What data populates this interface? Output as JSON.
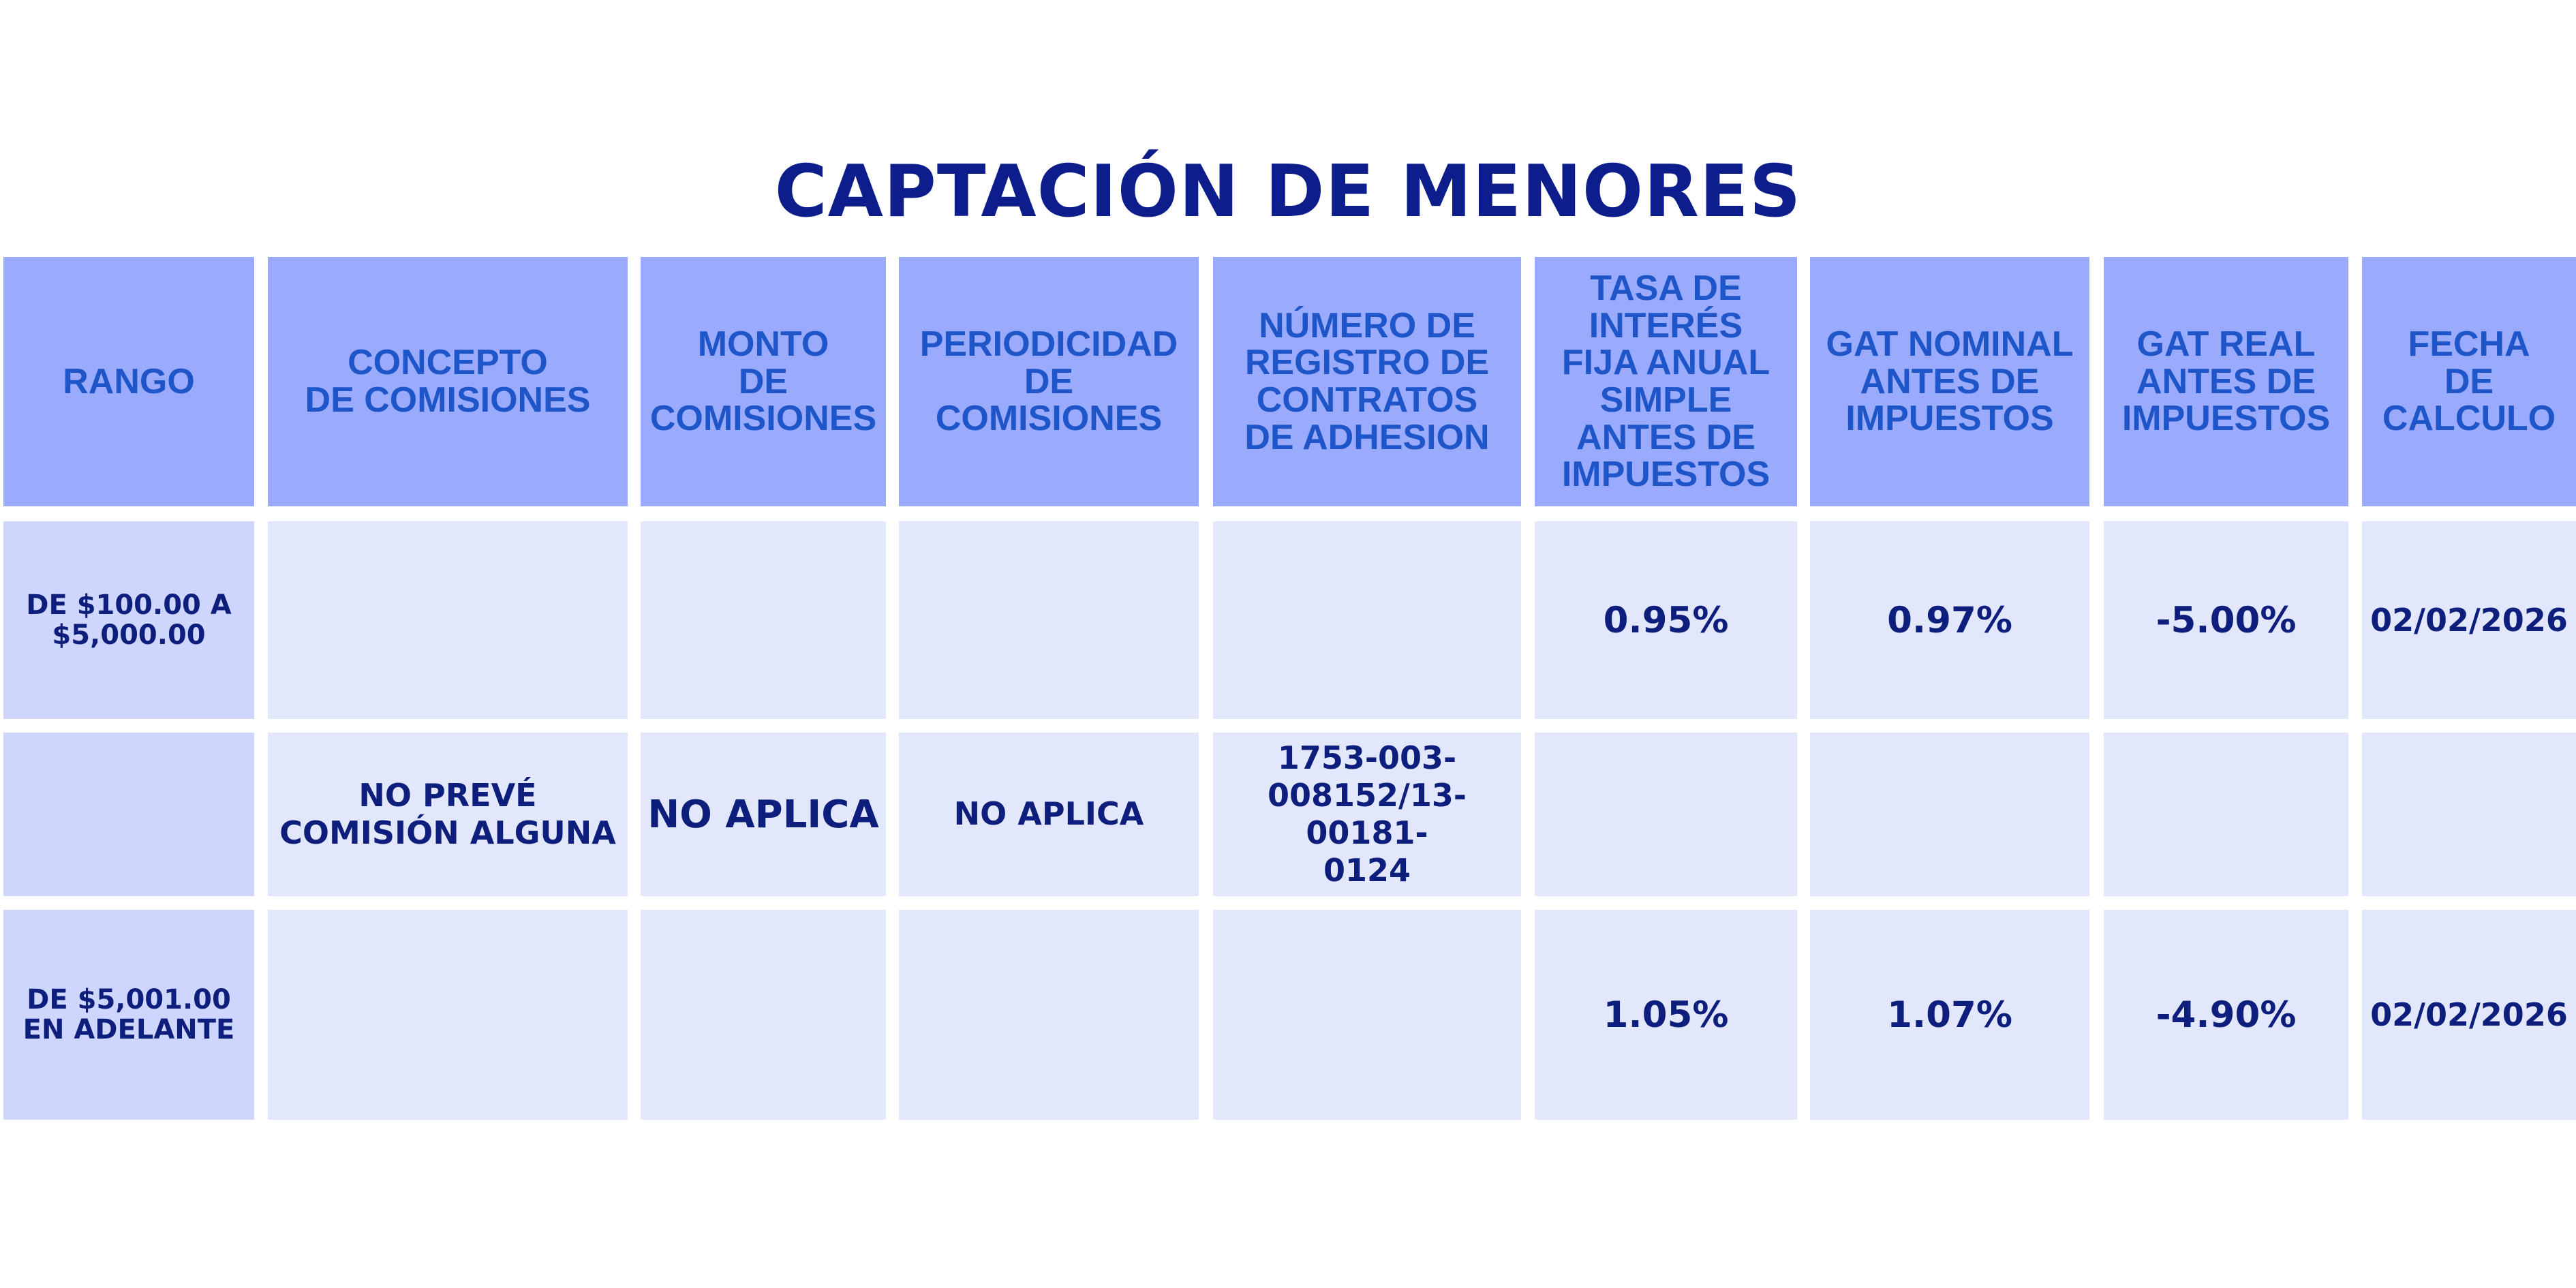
{
  "title": "CAPTACIÓN DE MENORES",
  "colors": {
    "title": "#0d1e8c",
    "header_bg": "#9aabfd",
    "header_text": "#1e55c8",
    "range_bg": "#cfd6fd",
    "body_bg": "#e2e7fc",
    "body_text": "#0d1e7c"
  },
  "headers": {
    "rango": "RANGO",
    "concepto": "CONCEPTO\nDE COMISIONES",
    "monto": "MONTO\nDE\nCOMISIONES",
    "periodicidad": "PERIODICIDAD\nDE\nCOMISIONES",
    "registro": "NÚMERO DE\nREGISTRO DE\nCONTRATOS\nDE ADHESION",
    "tasa": "TASA DE\nINTERÉS\nFIJA ANUAL\nSIMPLE\nANTES DE\nIMPUESTOS",
    "gat_nominal": "GAT NOMINAL\nANTES DE\nIMPUESTOS",
    "gat_real": "GAT REAL\nANTES DE\nIMPUESTOS",
    "fecha": "FECHA\nDE\nCALCULO"
  },
  "rows": [
    {
      "rango": "DE $100.00 A\n$5,000.00",
      "tasa": "0.95%",
      "gat_nominal": "0.97%",
      "gat_real": "-5.00%",
      "fecha": "02/02/2026"
    },
    {
      "concepto": "NO PREVÉ\nCOMISIÓN ALGUNA",
      "monto": "NO APLICA",
      "periodicidad": "NO APLICA",
      "registro": "1753-003-\n008152/13-00181-\n0124"
    },
    {
      "rango": "DE $5,001.00\nEN ADELANTE",
      "tasa": "1.05%",
      "gat_nominal": "1.07%",
      "gat_real": "-4.90%",
      "fecha": "02/02/2026"
    }
  ]
}
